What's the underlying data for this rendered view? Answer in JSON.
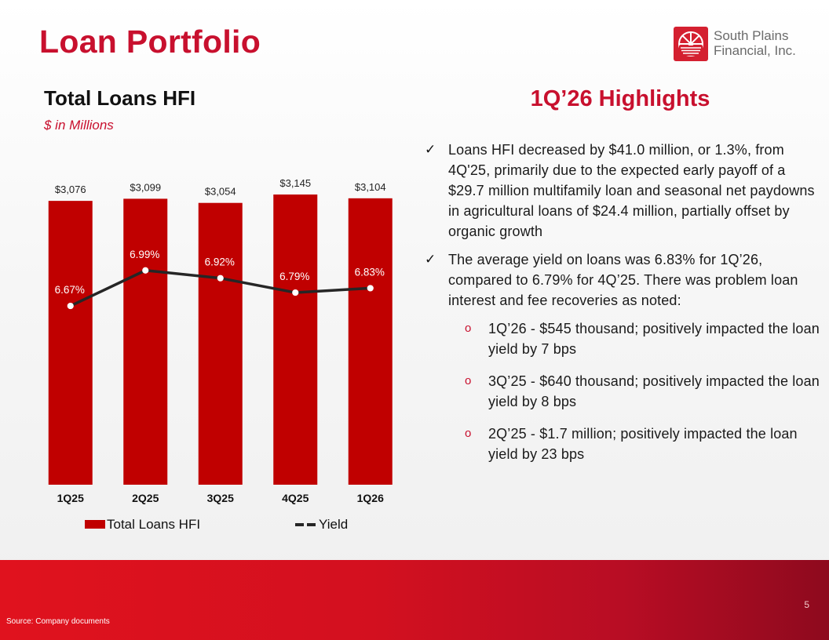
{
  "slide": {
    "title": "Loan Portfolio",
    "page_number": "5",
    "source": "Source: Company documents"
  },
  "logo": {
    "line1": "South Plains",
    "line2": "Financial, Inc.",
    "brand_color": "#d42030"
  },
  "chart_section": {
    "title": "Total Loans HFI",
    "subtitle": "$ in Millions"
  },
  "chart_data": {
    "type": "bar",
    "categories": [
      "1Q25",
      "2Q25",
      "3Q25",
      "4Q25",
      "1Q26"
    ],
    "series": [
      {
        "name": "Total Loans HFI",
        "kind": "bar",
        "color": "#c00000",
        "values": [
          3076,
          3099,
          3054,
          3145,
          3104
        ],
        "labels": [
          "$3,076",
          "$3,099",
          "$3,054",
          "$3,145",
          "$3,104"
        ]
      },
      {
        "name": "Yield",
        "kind": "line",
        "color": "#262626",
        "values": [
          6.67,
          6.99,
          6.92,
          6.79,
          6.83
        ],
        "labels": [
          "6.67%",
          "6.99%",
          "6.92%",
          "6.79%",
          "6.83%"
        ]
      }
    ],
    "legend_position": "bottom",
    "grid": false
  },
  "highlights": {
    "title": "1Q’26 Highlights",
    "bullets": [
      "Loans HFI decreased by $41.0 million, or 1.3%, from 4Q'25, primarily due to the expected early payoff of a $29.7 million multifamily loan and seasonal net paydowns in agricultural loans of $24.4 million, partially offset by organic growth",
      "The average yield on loans was 6.83% for 1Q’26, compared to 6.79% for 4Q’25. There was problem loan interest and fee recoveries as noted:"
    ],
    "sub_bullets": [
      "1Q’26 - $545 thousand; positively impacted the loan yield by 7 bps",
      "3Q’25 - $640 thousand; positively impacted the loan yield by 8 bps",
      "2Q’25 - $1.7 million; positively impacted the loan yield by 23 bps"
    ],
    "check_mark": "✓",
    "sub_mark": "o"
  }
}
